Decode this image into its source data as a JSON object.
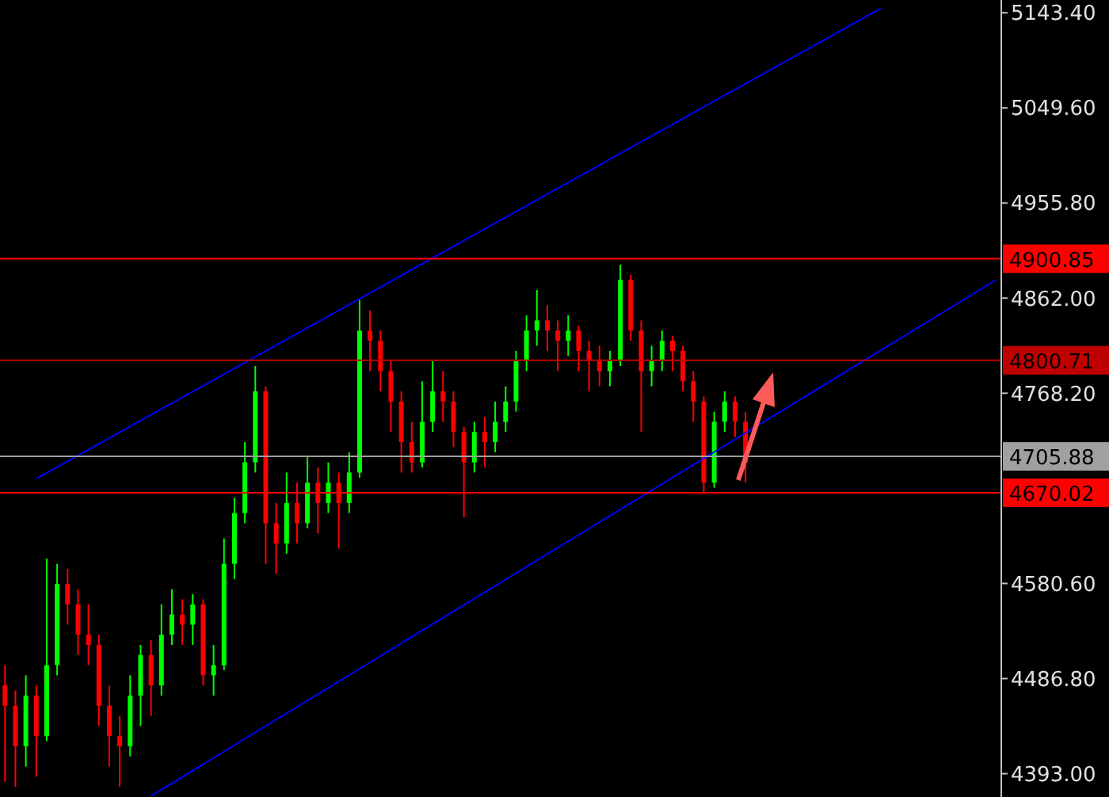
{
  "chart_data": {
    "type": "candlestick",
    "categories": [
      null,
      null,
      null,
      null,
      null,
      null,
      null,
      null,
      null,
      null,
      null,
      null,
      null,
      null,
      null,
      null,
      null,
      null,
      null,
      null,
      null,
      null,
      null,
      null,
      null,
      null,
      null,
      null,
      null,
      null,
      null,
      null,
      null,
      null,
      null,
      null,
      null,
      null,
      null,
      null,
      null,
      null,
      null,
      null,
      null,
      null,
      null,
      null,
      null,
      null,
      null,
      null,
      null,
      null,
      null,
      null,
      null,
      null,
      null,
      null,
      null,
      null,
      null,
      null,
      null,
      null,
      null,
      null,
      null,
      null,
      null,
      null,
      null,
      null,
      null,
      null,
      null,
      null,
      null,
      null,
      null,
      null,
      null,
      null,
      null,
      null,
      null,
      null,
      null,
      null,
      null,
      null,
      null,
      null,
      null,
      null
    ],
    "ohlc": [
      [
        4480,
        4500,
        4385,
        4460
      ],
      [
        4460,
        4475,
        4380,
        4420
      ],
      [
        4420,
        4490,
        4400,
        4470
      ],
      [
        4470,
        4480,
        4390,
        4430
      ],
      [
        4430,
        4605,
        4425,
        4500
      ],
      [
        4500,
        4600,
        4490,
        4580
      ],
      [
        4580,
        4595,
        4540,
        4560
      ],
      [
        4560,
        4575,
        4510,
        4530
      ],
      [
        4530,
        4560,
        4500,
        4520
      ],
      [
        4520,
        4530,
        4440,
        4460
      ],
      [
        4460,
        4480,
        4400,
        4430
      ],
      [
        4430,
        4450,
        4380,
        4420
      ],
      [
        4420,
        4490,
        4410,
        4470
      ],
      [
        4470,
        4520,
        4440,
        4510
      ],
      [
        4510,
        4525,
        4450,
        4480
      ],
      [
        4480,
        4560,
        4470,
        4530
      ],
      [
        4530,
        4575,
        4520,
        4550
      ],
      [
        4550,
        4565,
        4520,
        4540
      ],
      [
        4540,
        4570,
        4520,
        4560
      ],
      [
        4560,
        4565,
        4480,
        4490
      ],
      [
        4490,
        4520,
        4470,
        4500
      ],
      [
        4500,
        4625,
        4495,
        4600
      ],
      [
        4600,
        4665,
        4585,
        4650
      ],
      [
        4650,
        4720,
        4640,
        4700
      ],
      [
        4700,
        4795,
        4690,
        4770
      ],
      [
        4770,
        4775,
        4600,
        4640
      ],
      [
        4640,
        4660,
        4590,
        4620
      ],
      [
        4620,
        4690,
        4610,
        4660
      ],
      [
        4660,
        4680,
        4620,
        4640
      ],
      [
        4640,
        4705,
        4635,
        4680
      ],
      [
        4680,
        4695,
        4630,
        4660
      ],
      [
        4660,
        4700,
        4650,
        4680
      ],
      [
        4680,
        4690,
        4615,
        4660
      ],
      [
        4660,
        4710,
        4650,
        4690
      ],
      [
        4690,
        4860,
        4685,
        4830
      ],
      [
        4830,
        4850,
        4790,
        4820
      ],
      [
        4820,
        4830,
        4770,
        4790
      ],
      [
        4790,
        4800,
        4730,
        4760
      ],
      [
        4760,
        4770,
        4690,
        4720
      ],
      [
        4720,
        4740,
        4690,
        4700
      ],
      [
        4700,
        4780,
        4695,
        4740
      ],
      [
        4740,
        4800,
        4730,
        4770
      ],
      [
        4770,
        4790,
        4740,
        4760
      ],
      [
        4760,
        4770,
        4715,
        4730
      ],
      [
        4730,
        4735,
        4646,
        4700
      ],
      [
        4700,
        4740,
        4690,
        4730
      ],
      [
        4730,
        4745,
        4695,
        4720
      ],
      [
        4720,
        4760,
        4710,
        4740
      ],
      [
        4740,
        4775,
        4730,
        4760
      ],
      [
        4760,
        4810,
        4750,
        4800
      ],
      [
        4800,
        4845,
        4790,
        4830
      ],
      [
        4830,
        4870,
        4815,
        4840
      ],
      [
        4840,
        4855,
        4810,
        4830
      ],
      [
        4830,
        4840,
        4790,
        4820
      ],
      [
        4820,
        4845,
        4805,
        4830
      ],
      [
        4830,
        4835,
        4790,
        4810
      ],
      [
        4810,
        4820,
        4770,
        4800
      ],
      [
        4800,
        4815,
        4775,
        4790
      ],
      [
        4790,
        4810,
        4775,
        4800
      ],
      [
        4800,
        4895,
        4795,
        4880
      ],
      [
        4880,
        4885,
        4820,
        4830
      ],
      [
        4830,
        4840,
        4730,
        4790
      ],
      [
        4790,
        4815,
        4775,
        4800
      ],
      [
        4800,
        4830,
        4790,
        4820
      ],
      [
        4820,
        4825,
        4790,
        4810
      ],
      [
        4810,
        4815,
        4770,
        4780
      ],
      [
        4780,
        4790,
        4740,
        4760
      ],
      [
        4760,
        4765,
        4670,
        4680
      ],
      [
        4680,
        4750,
        4675,
        4740
      ],
      [
        4740,
        4770,
        4730,
        4760
      ],
      [
        4760,
        4765,
        4725,
        4740
      ],
      [
        4740,
        4750,
        4680,
        4700
      ],
      null,
      null,
      null,
      null,
      null,
      null,
      null,
      null,
      null,
      null,
      null,
      null,
      null,
      null,
      null,
      null,
      null,
      null,
      null,
      null,
      null,
      null,
      null,
      null
    ],
    "series": [
      {
        "type": "line",
        "color": "#0000ff",
        "values": [
          null,
          null,
          null,
          4684,
          null,
          null,
          null,
          null,
          null,
          null,
          null,
          null,
          null,
          null,
          null,
          null,
          null,
          null,
          null,
          null,
          null,
          null,
          null,
          null,
          null,
          null,
          null,
          null,
          null,
          null,
          null,
          null,
          null,
          null,
          null,
          null,
          null,
          null,
          null,
          null,
          null,
          null,
          null,
          null,
          null,
          null,
          null,
          null,
          null,
          null,
          null,
          null,
          null,
          null,
          null,
          null,
          null,
          null,
          null,
          null,
          null,
          null,
          null,
          null,
          null,
          null,
          null,
          null,
          null,
          null,
          null,
          null,
          null,
          null,
          null,
          null,
          null,
          null,
          null,
          null,
          null,
          null,
          null,
          null,
          5148,
          null,
          null,
          null,
          null,
          null,
          null,
          null,
          null,
          null,
          null,
          null
        ]
      },
      {
        "type": "line",
        "color": "#0000ff",
        "values": [
          null,
          null,
          null,
          null,
          null,
          null,
          null,
          null,
          null,
          null,
          null,
          null,
          null,
          null,
          4371,
          null,
          null,
          null,
          null,
          null,
          null,
          null,
          null,
          null,
          null,
          null,
          null,
          null,
          null,
          null,
          null,
          null,
          null,
          null,
          null,
          null,
          null,
          null,
          null,
          null,
          null,
          null,
          null,
          null,
          null,
          null,
          null,
          null,
          null,
          null,
          null,
          null,
          null,
          null,
          null,
          null,
          null,
          null,
          null,
          null,
          null,
          null,
          null,
          null,
          null,
          null,
          null,
          null,
          null,
          null,
          null,
          null,
          null,
          null,
          null,
          null,
          null,
          null,
          null,
          null,
          null,
          null,
          null,
          null,
          null,
          null,
          null,
          null,
          null,
          null,
          null,
          null,
          null,
          null,
          null,
          4880
        ]
      }
    ],
    "ylim": [
      4370,
      5156
    ],
    "yticks": [
      {
        "value": 4393,
        "label": "4393.00"
      },
      {
        "value": 4486.8,
        "label": "4486.80"
      },
      {
        "value": 4580.6,
        "label": "4580.60"
      },
      {
        "value": 4768.2,
        "label": "4768.20"
      },
      {
        "value": 4862,
        "label": "4862.00"
      },
      {
        "value": 4955.8,
        "label": "4955.80"
      },
      {
        "value": 5049.6,
        "label": "5049.60"
      },
      {
        "value": 5143.4,
        "label": "5143.40"
      }
    ],
    "ref_lines": [
      {
        "axis": "y",
        "value": 4900.85,
        "label": "4900.85",
        "color": "#ff0000"
      },
      {
        "axis": "y",
        "value": 4800.71,
        "label": "4800.71",
        "color": "#c00000"
      },
      {
        "axis": "y",
        "value": 4705.88,
        "label": "4705.88",
        "color": "#a0a0a0"
      },
      {
        "axis": "y",
        "value": 4670.02,
        "label": "4670.02",
        "color": "#ff0000"
      }
    ],
    "tick_labels": "y",
    "grid": false
  }
}
